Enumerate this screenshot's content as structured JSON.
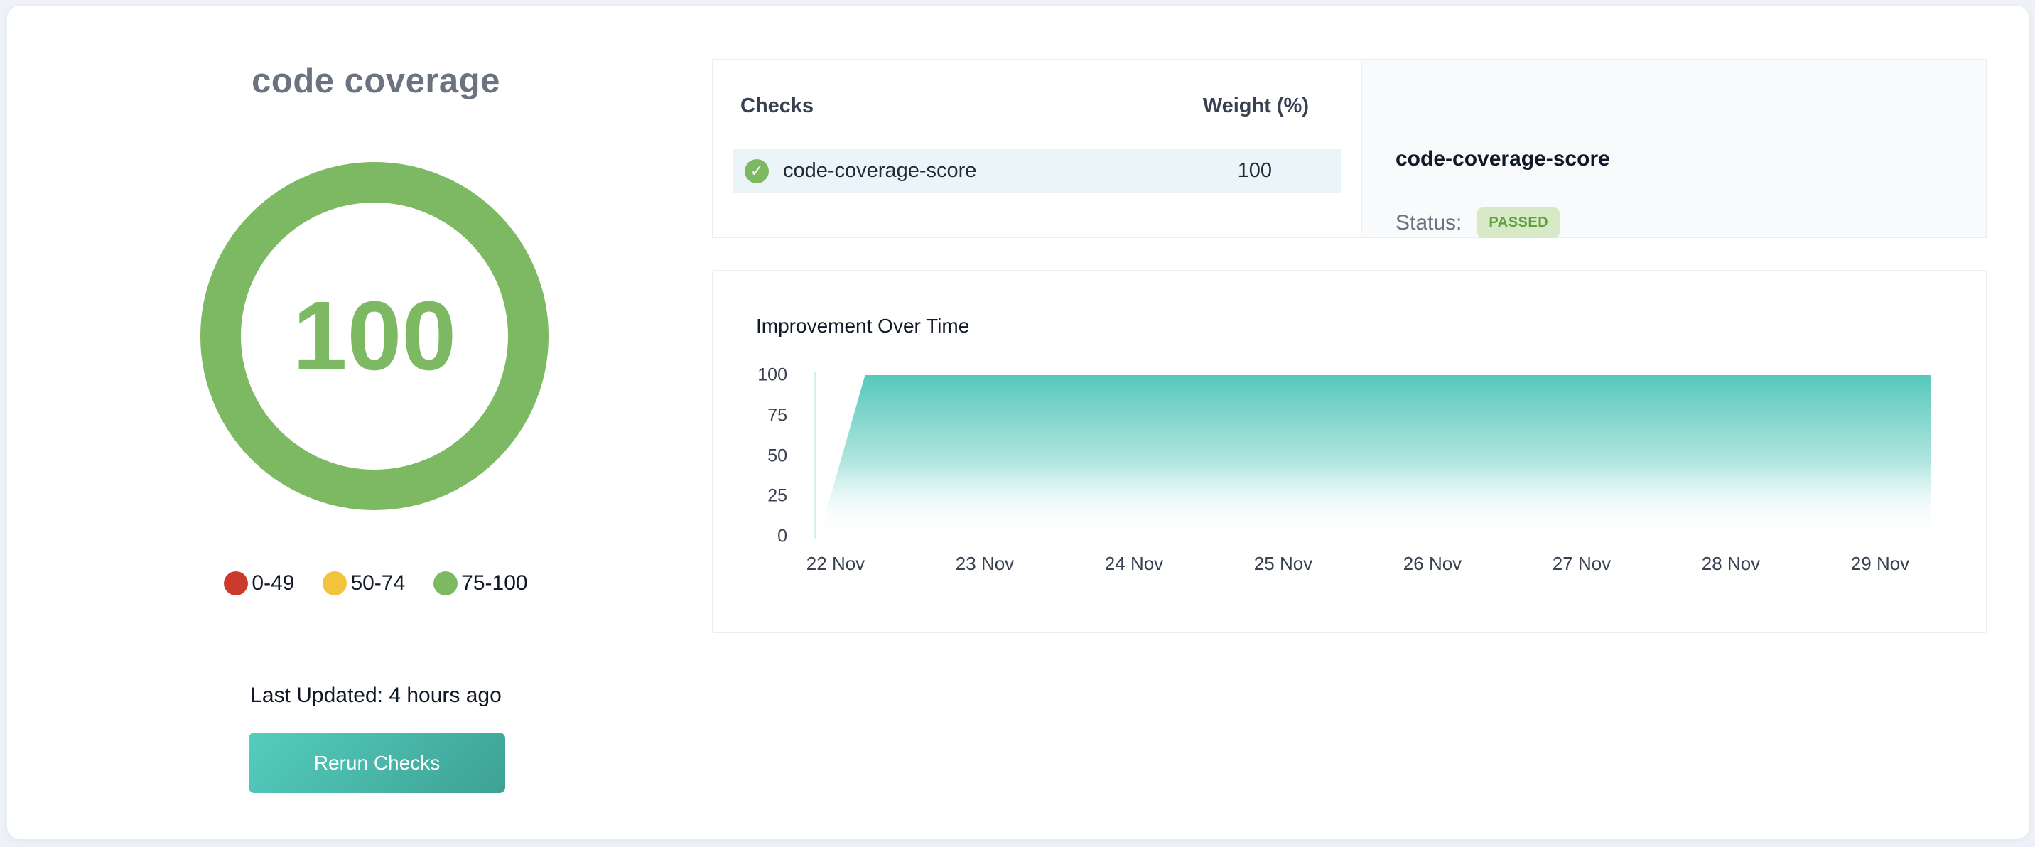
{
  "left_panel": {
    "title": "code coverage",
    "gauge": {
      "value": "100",
      "color": "#7db863"
    },
    "legend": [
      {
        "label": "0-49",
        "color": "#ca3a2d"
      },
      {
        "label": "50-74",
        "color": "#f2c33c"
      },
      {
        "label": "75-100",
        "color": "#7db863"
      }
    ],
    "last_updated": "Last Updated: 4 hours ago",
    "rerun_button_label": "Rerun Checks",
    "rerun_button_gradient": "linear-gradient(135deg, #54cdbf 0%, #3ea193 100%)"
  },
  "checks_panel": {
    "columns": [
      "Checks",
      "Weight (%)"
    ],
    "rows": [
      {
        "name": "code-coverage-score",
        "weight": "100",
        "status_icon": "check-circle-icon",
        "icon_glyph": "✓"
      }
    ],
    "row_highlight_color": "#ebf5f9"
  },
  "status_panel": {
    "title": "code-coverage-score",
    "status_label": "Status:",
    "status_value": "PASSED",
    "badge_bg": "#d7e9c6",
    "badge_text_color": "#5da23e"
  },
  "chart_data": {
    "type": "area",
    "title": "Improvement Over Time",
    "x_labels": [
      "22 Nov",
      "23 Nov",
      "24 Nov",
      "25 Nov",
      "26 Nov",
      "27 Nov",
      "28 Nov",
      "29 Nov"
    ],
    "y_ticks": [
      0,
      25,
      50,
      75,
      100
    ],
    "ylim": [
      0,
      100
    ],
    "xlabel": "",
    "ylabel": "",
    "grid": false,
    "legend_shown": false,
    "series": [
      {
        "name": "code-coverage-score",
        "summary": "starts at 0 early on 22 Nov, rises to 100 within the first part of 22 Nov, then stays flat at 100 through 29 Nov",
        "values_at_labels": [
          0,
          100,
          100,
          100,
          100,
          100,
          100,
          100
        ],
        "polygon_norm": [
          [
            0.003,
            0
          ],
          [
            0.044,
            100
          ],
          [
            0.995,
            100
          ],
          [
            0.995,
            0
          ]
        ]
      }
    ],
    "colors": {
      "fill_top": "#57c8bb",
      "fill_mid": "rgba(87,200,187,0.45)",
      "fill_bottom": "rgba(255,255,255,0)",
      "axis_line": "#d9eef0",
      "tick_text": "#374151"
    }
  }
}
